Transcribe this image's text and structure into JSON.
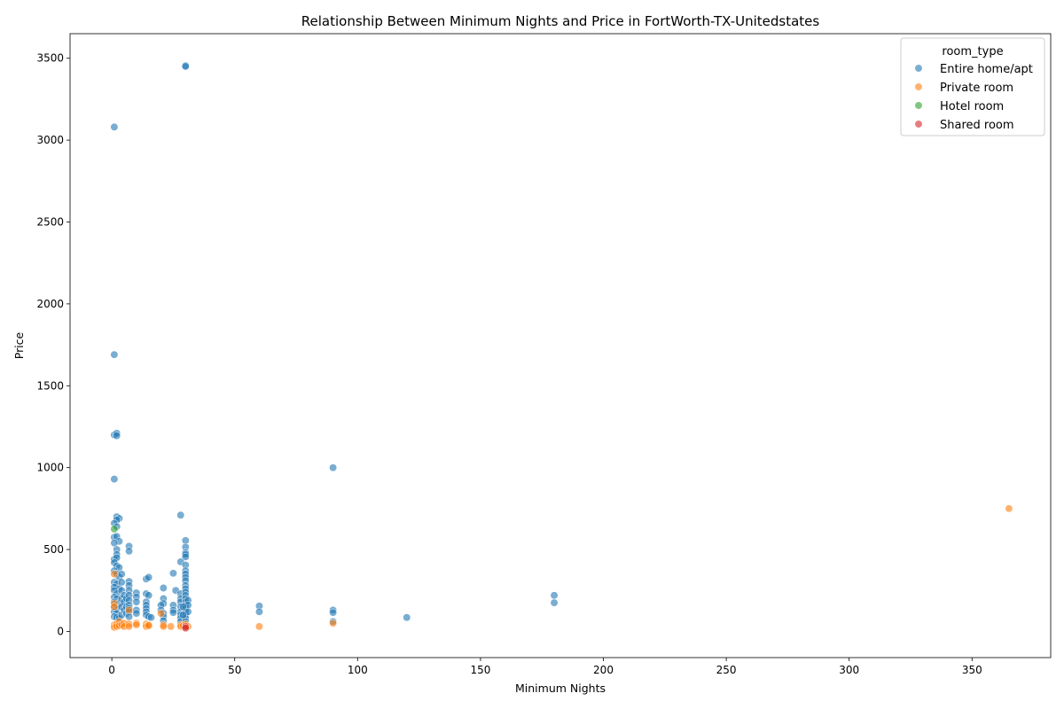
{
  "chart_data": {
    "type": "scatter",
    "title": "Relationship Between Minimum Nights and Price in FortWorth-TX-Unitedstates",
    "xlabel": "Minimum Nights",
    "ylabel": "Price",
    "xlim": [
      -17,
      382
    ],
    "ylim": [
      -160,
      3650
    ],
    "xticks": [
      0,
      50,
      100,
      150,
      200,
      250,
      300,
      350
    ],
    "yticks": [
      0,
      500,
      1000,
      1500,
      2000,
      2500,
      3000,
      3500
    ],
    "grid": false,
    "legend": {
      "title": "room_type",
      "placement": "top-right",
      "entries": [
        "Entire home/apt",
        "Private room",
        "Hotel room",
        "Shared room"
      ]
    },
    "series": [
      {
        "name": "Entire home/apt",
        "color": "#1f77b4",
        "points": [
          [
            30,
            3455
          ],
          [
            30,
            3450
          ],
          [
            1,
            3080
          ],
          [
            1,
            1690
          ],
          [
            1,
            1200
          ],
          [
            2,
            1210
          ],
          [
            2,
            1195
          ],
          [
            1,
            930
          ],
          [
            90,
            1000
          ],
          [
            2,
            700
          ],
          [
            3,
            690
          ],
          [
            2,
            680
          ],
          [
            28,
            710
          ],
          [
            1,
            660
          ],
          [
            2,
            640
          ],
          [
            1,
            575
          ],
          [
            2,
            580
          ],
          [
            3,
            550
          ],
          [
            1,
            540
          ],
          [
            2,
            500
          ],
          [
            2,
            470
          ],
          [
            1,
            440
          ],
          [
            2,
            450
          ],
          [
            1,
            420
          ],
          [
            2,
            400
          ],
          [
            3,
            390
          ],
          [
            1,
            370
          ],
          [
            2,
            350
          ],
          [
            3,
            330
          ],
          [
            1,
            300
          ],
          [
            2,
            290
          ],
          [
            1,
            270
          ],
          [
            3,
            260
          ],
          [
            1,
            250
          ],
          [
            2,
            230
          ],
          [
            1,
            210
          ],
          [
            2,
            200
          ],
          [
            1,
            180
          ],
          [
            3,
            170
          ],
          [
            1,
            150
          ],
          [
            2,
            140
          ],
          [
            1,
            120
          ],
          [
            2,
            110
          ],
          [
            1,
            90
          ],
          [
            2,
            85
          ],
          [
            3,
            80
          ],
          [
            4,
            350
          ],
          [
            4,
            300
          ],
          [
            4,
            250
          ],
          [
            4,
            200
          ],
          [
            4,
            150
          ],
          [
            4,
            100
          ],
          [
            5,
            220
          ],
          [
            5,
            180
          ],
          [
            5,
            130
          ],
          [
            6,
            200
          ],
          [
            6,
            150
          ],
          [
            6,
            110
          ],
          [
            7,
            520
          ],
          [
            7,
            490
          ],
          [
            7,
            305
          ],
          [
            7,
            280
          ],
          [
            7,
            250
          ],
          [
            7,
            220
          ],
          [
            7,
            190
          ],
          [
            7,
            160
          ],
          [
            7,
            140
          ],
          [
            7,
            120
          ],
          [
            7,
            90
          ],
          [
            10,
            235
          ],
          [
            10,
            210
          ],
          [
            10,
            180
          ],
          [
            10,
            130
          ],
          [
            10,
            110
          ],
          [
            14,
            320
          ],
          [
            15,
            330
          ],
          [
            14,
            230
          ],
          [
            15,
            220
          ],
          [
            14,
            180
          ],
          [
            14,
            160
          ],
          [
            14,
            140
          ],
          [
            14,
            120
          ],
          [
            14,
            100
          ],
          [
            15,
            90
          ],
          [
            16,
            85
          ],
          [
            21,
            265
          ],
          [
            21,
            200
          ],
          [
            21,
            170
          ],
          [
            20,
            160
          ],
          [
            20,
            130
          ],
          [
            21,
            110
          ],
          [
            21,
            90
          ],
          [
            21,
            65
          ],
          [
            25,
            355
          ],
          [
            26,
            250
          ],
          [
            25,
            160
          ],
          [
            25,
            130
          ],
          [
            25,
            115
          ],
          [
            28,
            425
          ],
          [
            28,
            230
          ],
          [
            28,
            200
          ],
          [
            28,
            180
          ],
          [
            28,
            150
          ],
          [
            28,
            120
          ],
          [
            28,
            100
          ],
          [
            28,
            80
          ],
          [
            28,
            60
          ],
          [
            30,
            555
          ],
          [
            30,
            515
          ],
          [
            30,
            480
          ],
          [
            30,
            470
          ],
          [
            30,
            455
          ],
          [
            30,
            405
          ],
          [
            30,
            370
          ],
          [
            30,
            350
          ],
          [
            30,
            330
          ],
          [
            30,
            310
          ],
          [
            30,
            280
          ],
          [
            30,
            260
          ],
          [
            30,
            240
          ],
          [
            30,
            220
          ],
          [
            30,
            200
          ],
          [
            30,
            180
          ],
          [
            30,
            160
          ],
          [
            30,
            140
          ],
          [
            30,
            120
          ],
          [
            30,
            100
          ],
          [
            30,
            80
          ],
          [
            30,
            60
          ],
          [
            30,
            40
          ],
          [
            31,
            190
          ],
          [
            31,
            160
          ],
          [
            31,
            120
          ],
          [
            29,
            150
          ],
          [
            29,
            100
          ],
          [
            60,
            155
          ],
          [
            60,
            120
          ],
          [
            90,
            130
          ],
          [
            90,
            115
          ],
          [
            90,
            60
          ],
          [
            120,
            85
          ],
          [
            180,
            220
          ],
          [
            180,
            175
          ]
        ]
      },
      {
        "name": "Private room",
        "color": "#ff7f0e",
        "points": [
          [
            365,
            750
          ],
          [
            60,
            30
          ],
          [
            90,
            50
          ],
          [
            1,
            350
          ],
          [
            1,
            170
          ],
          [
            1,
            150
          ],
          [
            1,
            40
          ],
          [
            1,
            25
          ],
          [
            2,
            45
          ],
          [
            2,
            30
          ],
          [
            3,
            60
          ],
          [
            3,
            35
          ],
          [
            4,
            40
          ],
          [
            5,
            50
          ],
          [
            5,
            30
          ],
          [
            7,
            130
          ],
          [
            7,
            45
          ],
          [
            7,
            30
          ],
          [
            10,
            50
          ],
          [
            10,
            40
          ],
          [
            14,
            45
          ],
          [
            14,
            30
          ],
          [
            15,
            40
          ],
          [
            15,
            35
          ],
          [
            20,
            110
          ],
          [
            21,
            40
          ],
          [
            21,
            30
          ],
          [
            24,
            30
          ],
          [
            28,
            40
          ],
          [
            28,
            30
          ],
          [
            29,
            35
          ],
          [
            30,
            45
          ],
          [
            30,
            30
          ],
          [
            30,
            25
          ],
          [
            31,
            30
          ]
        ]
      },
      {
        "name": "Hotel room",
        "color": "#2ca02c",
        "points": [
          [
            1,
            625
          ]
        ]
      },
      {
        "name": "Shared room",
        "color": "#d62728",
        "points": [
          [
            30,
            30
          ],
          [
            30,
            20
          ]
        ]
      }
    ]
  }
}
